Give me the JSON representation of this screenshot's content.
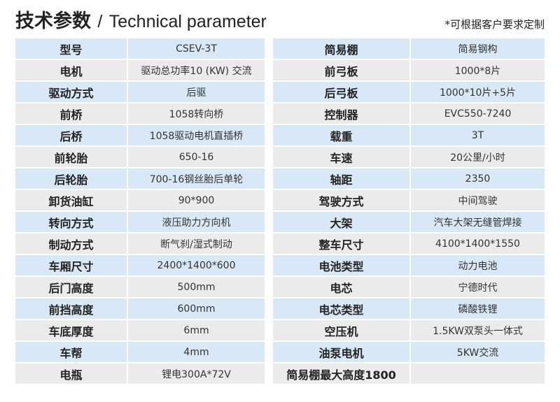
{
  "title": {
    "cn": "技术参数",
    "sep": "/",
    "en": "Technical parameter"
  },
  "note": "*可根据客户要求定制",
  "colors": {
    "row_blue": "#d9e8f6",
    "row_gray": "#ebebeb"
  },
  "left": [
    {
      "k": "型号",
      "v": "CSEV-3T"
    },
    {
      "k": "电机",
      "v": "驱动总功率10 (KW) 交流"
    },
    {
      "k": "驱动方式",
      "v": "后驱"
    },
    {
      "k": "前桥",
      "v": "1058转向桥"
    },
    {
      "k": "后桥",
      "v": "1058驱动电机直插桥"
    },
    {
      "k": "前轮胎",
      "v": "650-16"
    },
    {
      "k": "后轮胎",
      "v": "700-16钢丝胎后单轮"
    },
    {
      "k": "卸货油缸",
      "v": "90*900"
    },
    {
      "k": "转向方式",
      "v": "液压助力方向机"
    },
    {
      "k": "制动方式",
      "v": "断气刹/湿式制动"
    },
    {
      "k": "车厢尺寸",
      "v": "2400*1400*600"
    },
    {
      "k": "后门高度",
      "v": "500mm"
    },
    {
      "k": "前挡高度",
      "v": "600mm"
    },
    {
      "k": "车底厚度",
      "v": "6mm"
    },
    {
      "k": "车帮",
      "v": "4mm"
    },
    {
      "k": "电瓶",
      "v": "锂电300A*72V"
    }
  ],
  "right": [
    {
      "k": "简易棚",
      "v": "简易钢构"
    },
    {
      "k": "前弓板",
      "v": "1000*8片"
    },
    {
      "k": "后弓板",
      "v": "1000*10片+5片"
    },
    {
      "k": "控制器",
      "v": "EVC550-7240"
    },
    {
      "k": "载重",
      "v": "3T"
    },
    {
      "k": "车速",
      "v": "20公里/小时"
    },
    {
      "k": "轴距",
      "v": "2350"
    },
    {
      "k": "驾驶方式",
      "v": "中间驾驶"
    },
    {
      "k": "大架",
      "v": "汽车大架无缝管焊接"
    },
    {
      "k": "整车尺寸",
      "v": "4100*1400*1550"
    },
    {
      "k": "电池类型",
      "v": "动力电池"
    },
    {
      "k": "电芯",
      "v": "宁德时代"
    },
    {
      "k": "电芯类型",
      "v": "磷酸铁锂"
    },
    {
      "k": "空压机",
      "v": "1.5KW双泵头一体式"
    },
    {
      "k": "油泵电机",
      "v": "5KW交流"
    },
    {
      "k": "简易棚最大高度1800",
      "v": ""
    }
  ]
}
